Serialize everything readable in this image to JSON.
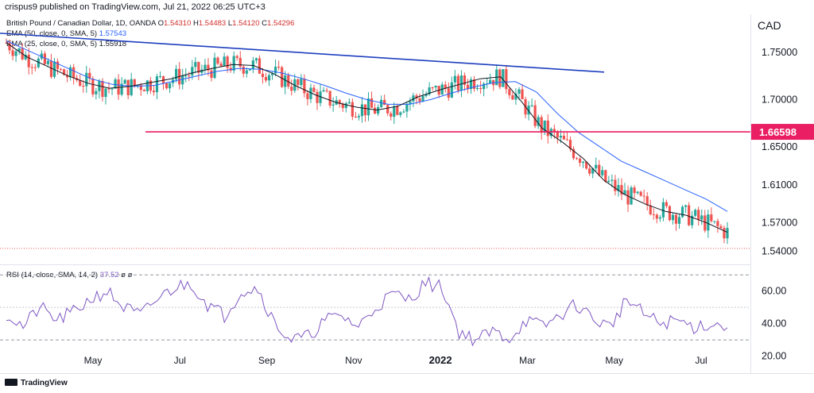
{
  "attribution": "crispus9 published on TradingView.com, Jul 21, 2022 06:25 UTC+3",
  "legend": {
    "title": "British Pound / Canadian Dollar, 1D, OANDA",
    "ohlc": [
      {
        "label": "O",
        "value": "1.54310"
      },
      {
        "label": "H",
        "value": "1.54483"
      },
      {
        "label": "L",
        "value": "1.54120"
      },
      {
        "label": "C",
        "value": "1.54296"
      }
    ],
    "ema50": {
      "label": "EMA (50, close, 0, SMA, 5)",
      "value": "1.57543"
    },
    "ema25": {
      "label": "EMA (25, close, 0, SMA, 5)",
      "value": "1.55918"
    },
    "rsi": {
      "label": "RSI (14, close, SMA, 14, 2)",
      "value": "37.52",
      "suffix": "ø  ø"
    }
  },
  "currency": "CAD",
  "footer": "TradingView",
  "colors": {
    "up": "#26a69a",
    "down": "#ef5350",
    "ema50": "#2962ff",
    "ema25": "#131722",
    "trendline": "#1e3fbf",
    "support": "#e91e63",
    "rsi": "#7e57c2",
    "price_line": "#ef5350"
  },
  "chart_data": [
    {
      "type": "candlestick",
      "title": "British Pound / Canadian Dollar, 1D, OANDA",
      "x_tick_labels": [
        "May",
        "Jul",
        "Sep",
        "Nov",
        "2022",
        "Mar",
        "May",
        "Jul"
      ],
      "y_tick_labels": [
        "1.75000",
        "1.70000",
        "1.65000",
        "1.61000",
        "1.57000",
        "1.54000"
      ],
      "y_ticks": [
        1.75,
        1.7,
        1.65,
        1.61,
        1.57,
        1.54
      ],
      "ylim": [
        1.527,
        1.79
      ],
      "price_label": "1.66598",
      "series": [
        {
          "name": "EMA (50, close, 0, SMA, 5)",
          "role": "ema50",
          "values": [
            1.762,
            1.752,
            1.742,
            1.732,
            1.722,
            1.716,
            1.714,
            1.715,
            1.72,
            1.725,
            1.73,
            1.733,
            1.732,
            1.728,
            1.722,
            1.715,
            1.707,
            1.7,
            1.695,
            1.695,
            1.7,
            1.707,
            1.713,
            1.718,
            1.719,
            1.708,
            1.685,
            1.665,
            1.65,
            1.635,
            1.625,
            1.615,
            1.605,
            1.595,
            1.582
          ]
        },
        {
          "name": "EMA (25, close, 0, SMA, 5)",
          "role": "ema25",
          "values": [
            1.76,
            1.745,
            1.735,
            1.725,
            1.717,
            1.712,
            1.714,
            1.718,
            1.722,
            1.728,
            1.733,
            1.737,
            1.736,
            1.727,
            1.715,
            1.705,
            1.697,
            1.692,
            1.689,
            1.693,
            1.703,
            1.71,
            1.716,
            1.722,
            1.724,
            1.698,
            1.67,
            1.655,
            1.638,
            1.615,
            1.6,
            1.59,
            1.582,
            1.578,
            1.57,
            1.56
          ]
        },
        {
          "name": "",
          "role": "trendline",
          "points": [
            [
              0,
              1.77
            ],
            [
              760,
              1.729
            ]
          ]
        },
        {
          "name": "",
          "role": "support",
          "values": [
            1.66598
          ]
        }
      ]
    },
    {
      "type": "line",
      "title": "RSI (14, close, SMA, 14, 2)",
      "y_tick_labels": [
        "60.00",
        "40.00",
        "20.00"
      ],
      "y_ticks": [
        60,
        40,
        20
      ],
      "ylim": [
        12,
        74
      ],
      "bands": [
        70,
        50,
        30
      ],
      "values": [
        46,
        38,
        50,
        42,
        47,
        55,
        60,
        50,
        45,
        55,
        62,
        65,
        52,
        45,
        60,
        62,
        40,
        30,
        32,
        42,
        45,
        38,
        50,
        58,
        55,
        65,
        62,
        35,
        30,
        35,
        31,
        42,
        38,
        45,
        52,
        43,
        38,
        55,
        46,
        40,
        42,
        38,
        40,
        37.52
      ]
    }
  ]
}
